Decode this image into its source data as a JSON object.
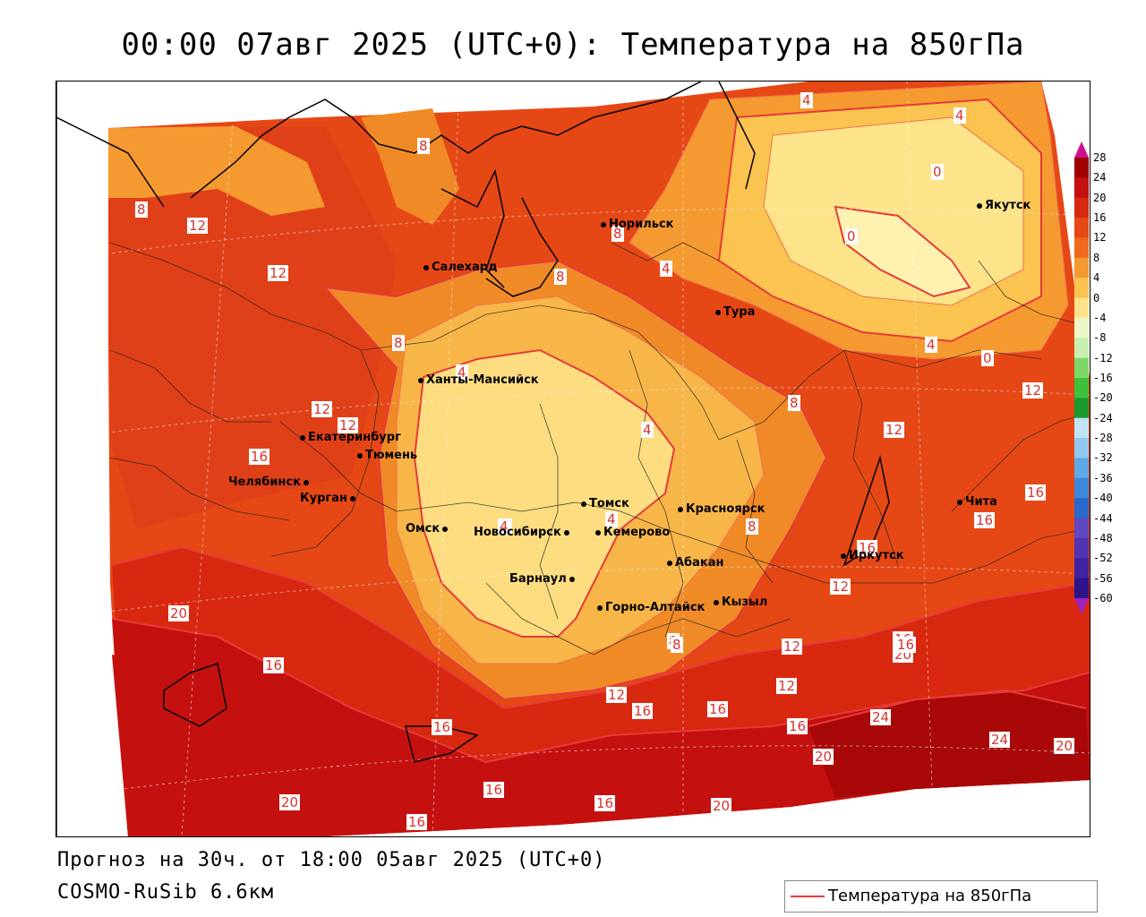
{
  "title": "00:00 07авг 2025 (UTC+0): Температура на 850гПа",
  "footer": {
    "forecast": "Прогноз на 30ч. от 18:00 05авг 2025 (UTC+0)",
    "model": "COSMO-RuSib 6.6км"
  },
  "legend": {
    "label": "Температура на 850гПа",
    "color": "#e53b3b"
  },
  "colorbar": {
    "ticks": [
      "28",
      "24",
      "20",
      "16",
      "12",
      "8",
      "4",
      "0",
      "-4",
      "-8",
      "-12",
      "-16",
      "-20",
      "-24",
      "-28",
      "-32",
      "-36",
      "-40",
      "-44",
      "-48",
      "-52",
      "-56",
      "-60"
    ],
    "colors": [
      "#a00000",
      "#c51010",
      "#d92810",
      "#e54815",
      "#ef6a1c",
      "#f59a30",
      "#fbc350",
      "#fde48a",
      "#eef8c8",
      "#c8f0b0",
      "#7fd96a",
      "#3fbf3a",
      "#1c9a30",
      "#c0e4f4",
      "#90c8ee",
      "#60a8e4",
      "#3c88da",
      "#2a68cc",
      "#6048c0",
      "#5034b0",
      "#3e24a0",
      "#2c1488"
    ]
  },
  "cities": [
    {
      "name": "Норильск"
    },
    {
      "name": "Якутск"
    },
    {
      "name": "Салехард"
    },
    {
      "name": "Тура"
    },
    {
      "name": "Ханты-Мансийск"
    },
    {
      "name": "Екатеринбург"
    },
    {
      "name": "Тюмень"
    },
    {
      "name": "Челябинск"
    },
    {
      "name": "Курган"
    },
    {
      "name": "Омск"
    },
    {
      "name": "Новосибирск"
    },
    {
      "name": "Томск"
    },
    {
      "name": "Кемерово"
    },
    {
      "name": "Красноярск"
    },
    {
      "name": "Абакан"
    },
    {
      "name": "Барнаул"
    },
    {
      "name": "Горно-Алтайск"
    },
    {
      "name": "Кызыл"
    },
    {
      "name": "Иркутск"
    },
    {
      "name": "Чита"
    }
  ],
  "contour_labels": [
    "4",
    "4",
    "8",
    "0",
    "0",
    "8",
    "12",
    "12",
    "8",
    "8",
    "4",
    "4",
    "0",
    "4",
    "8",
    "8",
    "12",
    "12",
    "12",
    "4",
    "12",
    "4",
    "4",
    "8",
    "12",
    "16",
    "16",
    "16",
    "16",
    "8",
    "12",
    "12",
    "16",
    "20",
    "20",
    "16",
    "16",
    "24",
    "24",
    "20",
    "16",
    "12",
    "16",
    "16",
    "16",
    "20",
    "20",
    "16",
    "16",
    "20",
    "8",
    "16",
    "4"
  ]
}
